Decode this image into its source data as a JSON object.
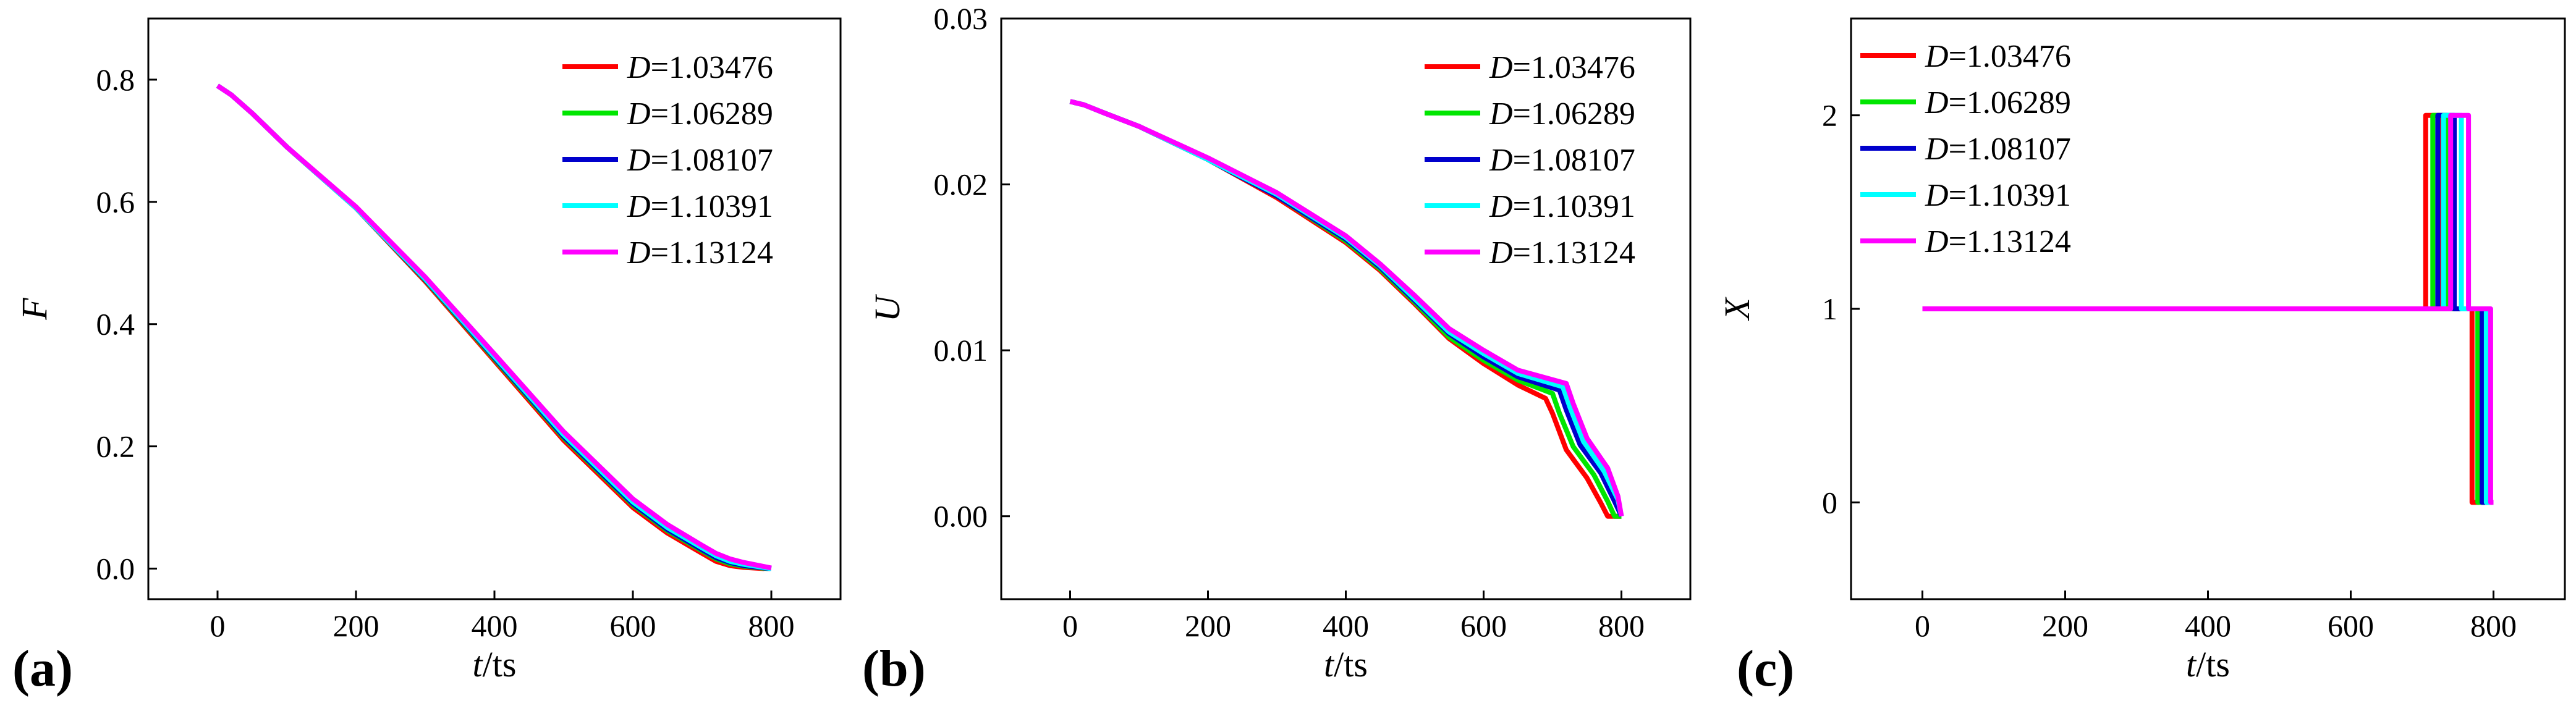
{
  "colors": [
    "#ff0000",
    "#00e600",
    "#0000cc",
    "#00ffff",
    "#ff00ff"
  ],
  "chart_data": [
    {
      "type": "line",
      "panel_label": "(a)",
      "ylabel": "F",
      "xlabel_var": "t",
      "xlabel_unit": "/ts",
      "xlim": [
        -100,
        900
      ],
      "ylim": [
        -0.05,
        0.9
      ],
      "xticks": [
        0,
        200,
        400,
        600,
        800
      ],
      "yticks": [
        0.0,
        0.2,
        0.4,
        0.6,
        0.8
      ],
      "ytick_decimals": 1,
      "legend_position": "top-right",
      "legend_var": "D",
      "series": [
        {
          "name": "1.03476",
          "x": [
            0,
            20,
            50,
            100,
            200,
            300,
            400,
            500,
            600,
            650,
            700,
            720,
            740,
            760,
            790
          ],
          "y": [
            0.79,
            0.775,
            0.745,
            0.69,
            0.59,
            0.47,
            0.34,
            0.21,
            0.1,
            0.058,
            0.025,
            0.012,
            0.005,
            0.002,
            0.0
          ]
        },
        {
          "name": "1.06289",
          "x": [
            0,
            20,
            50,
            100,
            200,
            300,
            400,
            500,
            600,
            650,
            700,
            720,
            740,
            760,
            795
          ],
          "y": [
            0.79,
            0.775,
            0.745,
            0.69,
            0.59,
            0.472,
            0.343,
            0.214,
            0.104,
            0.062,
            0.029,
            0.016,
            0.008,
            0.004,
            0.0
          ]
        },
        {
          "name": "1.08107",
          "x": [
            0,
            20,
            50,
            100,
            200,
            300,
            400,
            500,
            600,
            650,
            700,
            720,
            740,
            760,
            798
          ],
          "y": [
            0.79,
            0.775,
            0.745,
            0.69,
            0.59,
            0.473,
            0.345,
            0.216,
            0.106,
            0.064,
            0.031,
            0.018,
            0.01,
            0.005,
            0.0
          ]
        },
        {
          "name": "1.10391",
          "x": [
            0,
            20,
            50,
            100,
            200,
            300,
            400,
            500,
            600,
            650,
            700,
            720,
            740,
            760,
            800
          ],
          "y": [
            0.79,
            0.775,
            0.745,
            0.69,
            0.59,
            0.474,
            0.347,
            0.219,
            0.109,
            0.067,
            0.034,
            0.021,
            0.012,
            0.007,
            0.0
          ]
        },
        {
          "name": "1.13124",
          "x": [
            0,
            20,
            50,
            100,
            200,
            300,
            400,
            500,
            600,
            650,
            700,
            720,
            740,
            760,
            800
          ],
          "y": [
            0.79,
            0.775,
            0.745,
            0.69,
            0.592,
            0.477,
            0.351,
            0.224,
            0.114,
            0.072,
            0.038,
            0.025,
            0.016,
            0.01,
            0.001
          ]
        }
      ]
    },
    {
      "type": "line",
      "panel_label": "(b)",
      "ylabel": "U",
      "xlabel_var": "t",
      "xlabel_unit": "/ts",
      "xlim": [
        -100,
        900
      ],
      "ylim": [
        -0.005,
        0.03
      ],
      "xticks": [
        0,
        200,
        400,
        600,
        800
      ],
      "yticks": [
        0.0,
        0.01,
        0.02,
        0.03
      ],
      "ytick_decimals": 2,
      "legend_position": "top-right",
      "legend_var": "D",
      "series": [
        {
          "name": "1.03476",
          "x": [
            0,
            20,
            50,
            100,
            200,
            300,
            400,
            450,
            500,
            550,
            600,
            650,
            690,
            700,
            720,
            750,
            770,
            780,
            800
          ],
          "y": [
            0.025,
            0.0248,
            0.0243,
            0.0235,
            0.0215,
            0.0192,
            0.0165,
            0.0148,
            0.0128,
            0.0107,
            0.0092,
            0.0079,
            0.0071,
            0.0062,
            0.004,
            0.0023,
            0.0008,
            0.0,
            0.0
          ]
        },
        {
          "name": "1.06289",
          "x": [
            0,
            20,
            50,
            100,
            200,
            300,
            400,
            450,
            500,
            550,
            600,
            650,
            700,
            710,
            730,
            760,
            780,
            790,
            800
          ],
          "y": [
            0.025,
            0.0248,
            0.0243,
            0.0235,
            0.0215,
            0.0193,
            0.0166,
            0.0149,
            0.0129,
            0.0108,
            0.0094,
            0.0082,
            0.0074,
            0.0062,
            0.0042,
            0.0025,
            0.0009,
            0.0,
            0.0
          ]
        },
        {
          "name": "1.08107",
          "x": [
            0,
            20,
            50,
            100,
            200,
            300,
            400,
            450,
            500,
            550,
            600,
            650,
            710,
            720,
            740,
            770,
            790,
            800
          ],
          "y": [
            0.025,
            0.0248,
            0.0243,
            0.0235,
            0.0215,
            0.0193,
            0.0167,
            0.015,
            0.013,
            0.011,
            0.0096,
            0.0084,
            0.0076,
            0.0064,
            0.0043,
            0.0026,
            0.0009,
            0.0
          ]
        },
        {
          "name": "1.10391",
          "x": [
            0,
            20,
            50,
            100,
            200,
            300,
            400,
            450,
            500,
            550,
            600,
            650,
            715,
            725,
            745,
            775,
            795,
            800
          ],
          "y": [
            0.025,
            0.0248,
            0.0243,
            0.0235,
            0.0215,
            0.0194,
            0.0168,
            0.0151,
            0.0131,
            0.0111,
            0.0098,
            0.0086,
            0.0078,
            0.0066,
            0.0045,
            0.0027,
            0.001,
            0.0
          ]
        },
        {
          "name": "1.13124",
          "x": [
            0,
            20,
            50,
            100,
            200,
            300,
            400,
            450,
            500,
            550,
            600,
            650,
            720,
            730,
            750,
            780,
            795,
            800
          ],
          "y": [
            0.025,
            0.0248,
            0.0243,
            0.0235,
            0.0216,
            0.0195,
            0.0169,
            0.0152,
            0.0133,
            0.0113,
            0.01,
            0.0088,
            0.008,
            0.0068,
            0.0047,
            0.0029,
            0.0012,
            0.0
          ]
        }
      ]
    },
    {
      "type": "line",
      "panel_label": "(c)",
      "ylabel": "X",
      "xlabel_var": "t",
      "xlabel_unit": "/ts",
      "xlim": [
        -100,
        900
      ],
      "ylim": [
        -0.5,
        2.5
      ],
      "xticks": [
        0,
        200,
        400,
        600,
        800
      ],
      "yticks": [
        0,
        1,
        2
      ],
      "ytick_decimals": 0,
      "legend_position": "top-left",
      "legend_var": "D",
      "series": [
        {
          "name": "1.03476",
          "x": [
            0,
            705,
            705,
            725,
            725,
            770,
            770,
            780
          ],
          "y": [
            1,
            1,
            2,
            2,
            1,
            1,
            0,
            0
          ]
        },
        {
          "name": "1.06289",
          "x": [
            0,
            715,
            715,
            735,
            735,
            778,
            778,
            788
          ],
          "y": [
            1,
            1,
            2,
            2,
            1,
            1,
            0,
            0
          ]
        },
        {
          "name": "1.08107",
          "x": [
            0,
            722,
            722,
            745,
            745,
            784,
            784,
            794
          ],
          "y": [
            1,
            1,
            2,
            2,
            1,
            1,
            0,
            0
          ]
        },
        {
          "name": "1.10391",
          "x": [
            0,
            730,
            730,
            755,
            755,
            790,
            790,
            798
          ],
          "y": [
            1,
            1,
            2,
            2,
            1,
            1,
            0,
            0
          ]
        },
        {
          "name": "1.13124",
          "x": [
            0,
            740,
            740,
            765,
            765,
            796,
            796,
            800
          ],
          "y": [
            1,
            1,
            2,
            2,
            1,
            1,
            0,
            0
          ]
        }
      ]
    }
  ]
}
